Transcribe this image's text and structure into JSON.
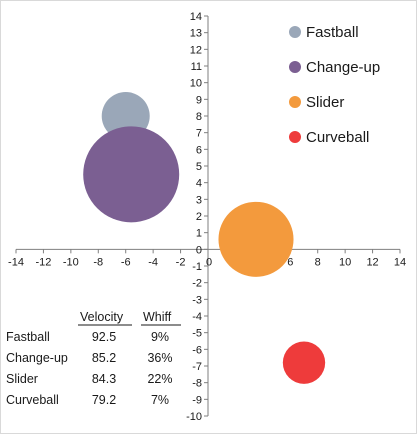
{
  "chart_data": {
    "type": "scatter",
    "title": "",
    "xlabel": "",
    "ylabel": "",
    "xlim": [
      -14,
      14
    ],
    "ylim": [
      -10,
      14
    ],
    "x_tick_step": 2,
    "y_tick_step": 1,
    "grid": false,
    "legend_position": "top-right",
    "series": [
      {
        "name": "Fastball",
        "x": -6.0,
        "y": 8.0,
        "size": 9,
        "color": "#9aa7b8"
      },
      {
        "name": "Change-up",
        "x": -5.6,
        "y": 4.5,
        "size": 36,
        "color": "#7b5f92"
      },
      {
        "name": "Slider",
        "x": 3.5,
        "y": 0.6,
        "size": 22,
        "color": "#f39a3d"
      },
      {
        "name": "Curveball",
        "x": 7.0,
        "y": -6.8,
        "size": 7,
        "color": "#ee3b3b"
      }
    ],
    "table": {
      "columns": [
        "Velocity",
        "Whiff"
      ],
      "rows": [
        {
          "label": "Fastball",
          "velocity": "92.5",
          "whiff": "9%"
        },
        {
          "label": "Change-up",
          "velocity": "85.2",
          "whiff": "36%"
        },
        {
          "label": "Slider",
          "velocity": "84.3",
          "whiff": "22%"
        },
        {
          "label": "Curveball",
          "velocity": "79.2",
          "whiff": "7%"
        }
      ]
    }
  }
}
